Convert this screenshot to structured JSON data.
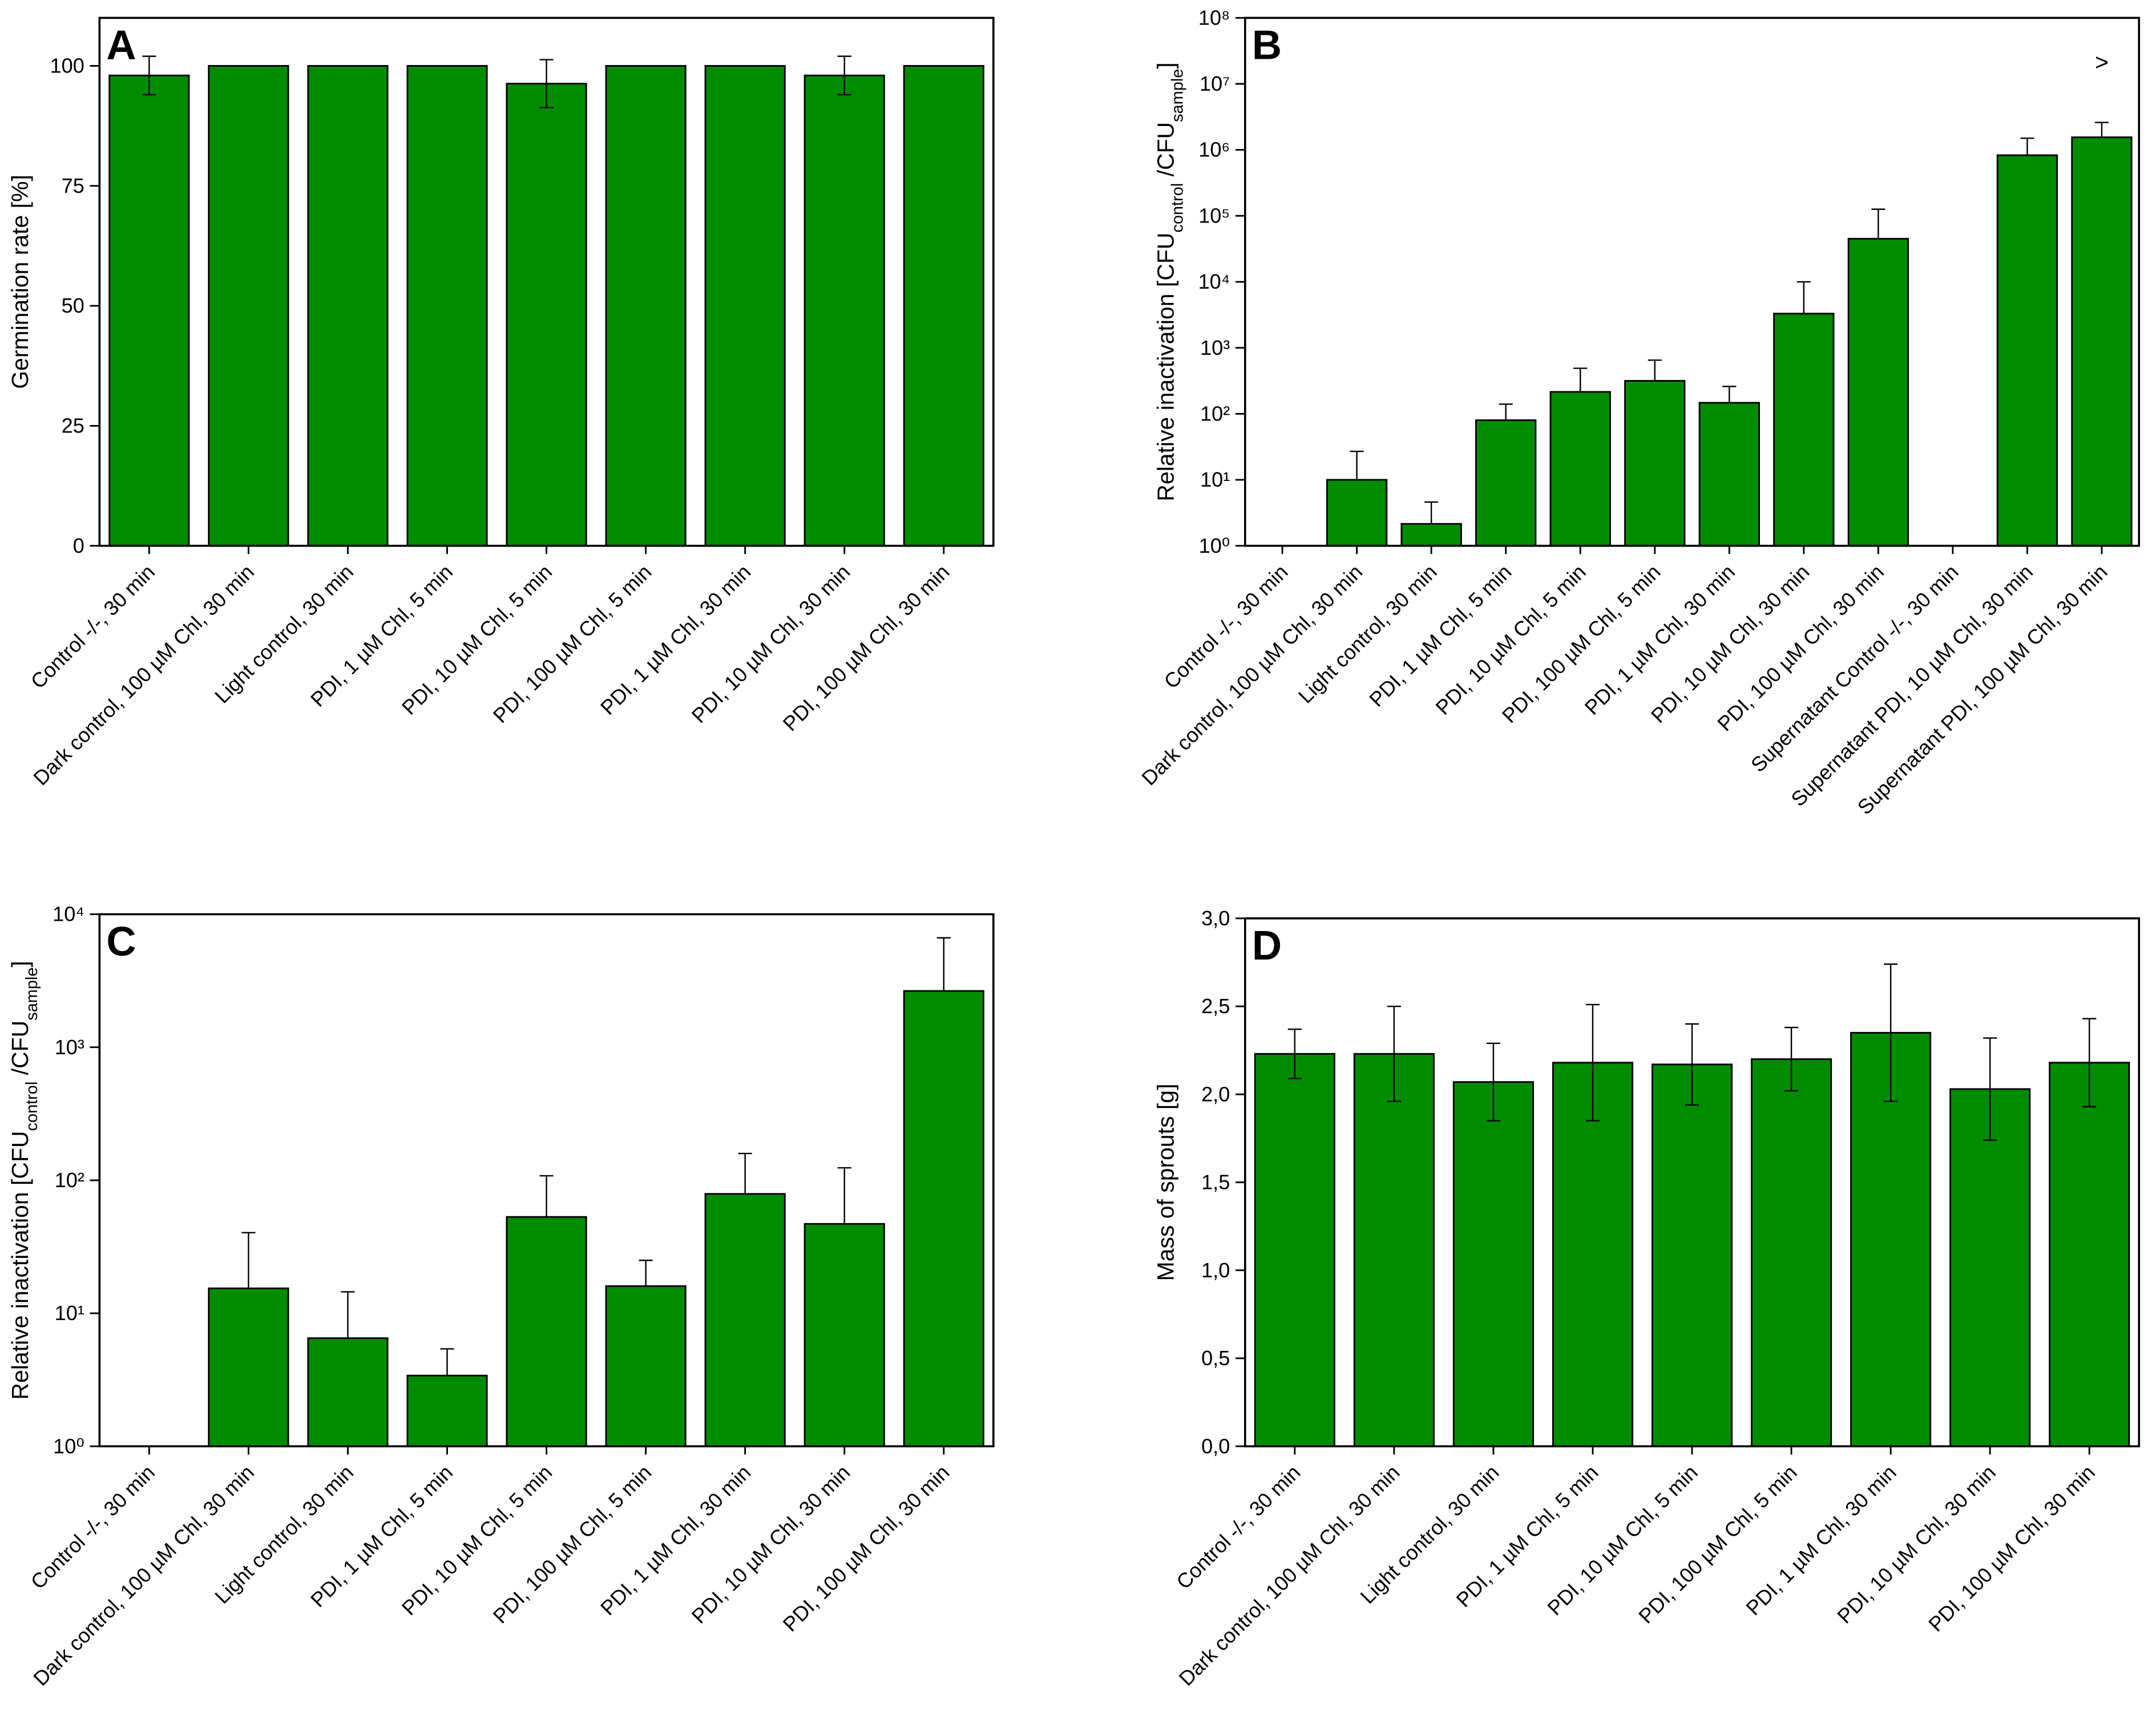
{
  "chart_data": [
    {
      "type": "bar",
      "panel_label": "A",
      "y_label": [
        "Germination rate [%]"
      ],
      "categories": [
        "Control -/-, 30 min",
        "Dark control, 100 µM Chl, 30 min",
        "Light control, 30 min",
        "PDI, 1 µM Chl, 5 min",
        "PDI, 10 µM Chl, 5 min",
        "PDI, 100 µM Chl, 5 min",
        "PDI, 1 µM Chl, 30 min",
        "PDI, 10 µM Chl, 30 min",
        "PDI, 100 µM Chl, 30 min"
      ],
      "values": [
        98,
        100,
        100,
        100,
        96.3,
        100,
        100,
        98,
        100
      ],
      "errors": [
        4,
        null,
        null,
        null,
        5,
        null,
        null,
        4,
        null
      ],
      "error_bars": "both",
      "log_y": false,
      "color": "#008c00",
      "ylim": [
        0,
        110
      ],
      "yticks": [
        0,
        25,
        50,
        75,
        100
      ]
    },
    {
      "type": "bar",
      "panel_label": "B",
      "y_label": [
        "Relative inactivation [CFU",
        "control",
        " /CFU",
        "sample",
        "]"
      ],
      "categories": [
        "Control -/-, 30 min",
        "Dark control, 100 µM Chl, 30 min",
        "Light control, 30 min",
        "PDI, 1 µM Chl, 5 min",
        "PDI, 10 µM Chl, 5 min",
        "PDI, 100 µM Chl, 5 min",
        "PDI, 1 µM Chl, 30 min",
        "PDI, 10 µM Chl, 30 min",
        "PDI, 100 µM Chl, 30 min",
        "Supernatant Control -/-, 30 min",
        "Supernatant PDI, 10 µM Chl, 30 min",
        "Supernatant PDI, 100 µM Chl, 30 min"
      ],
      "values": [
        1,
        10,
        2.15,
        80,
        215,
        316,
        147,
        3300,
        45000,
        1,
        830000,
        1550000
      ],
      "errors": [
        null,
        17,
        2.45,
        60,
        275,
        334,
        113,
        6700,
        81000,
        null,
        670000,
        1050000
      ],
      "error_bars": "upper",
      "log_y": true,
      "color": "#008c00",
      "annotations": [
        ">"
      ],
      "ylim": [
        1,
        100000000
      ],
      "yticks": [
        {
          "value": 1,
          "label": "10⁰"
        },
        {
          "value": 10,
          "label": "10¹"
        },
        {
          "value": 100,
          "label": "10²"
        },
        {
          "value": 1000,
          "label": "10³"
        },
        {
          "value": 10000,
          "label": "10⁴"
        },
        {
          "value": 100000,
          "label": "10⁵"
        },
        {
          "value": 1000000,
          "label": "10⁶"
        },
        {
          "value": 10000000,
          "label": "10⁷"
        },
        {
          "value": 100000000,
          "label": "10⁸"
        }
      ]
    },
    {
      "type": "bar",
      "panel_label": "C",
      "y_label": [
        "Relative inactivation [CFU",
        "control",
        " /CFU",
        "sample",
        "]"
      ],
      "categories": [
        "Control -/-, 30 min",
        "Dark control, 100 µM Chl, 30 min",
        "Light control, 30 min",
        "PDI, 1 µM Chl, 5 min",
        "PDI, 10 µM Chl, 5 min",
        "PDI, 100 µM Chl, 5 min",
        "PDI, 1 µM Chl, 30 min",
        "PDI, 10 µM Chl, 30 min",
        "PDI, 100 µM Chl, 30 min"
      ],
      "values": [
        1,
        15.4,
        6.5,
        3.4,
        53,
        16,
        79,
        47,
        2650
      ],
      "errors": [
        null,
        25,
        8,
        2,
        55,
        9,
        80,
        77,
        4000
      ],
      "error_bars": "upper",
      "log_y": true,
      "color": "#008c00",
      "ylim": [
        1,
        10000
      ],
      "yticks": [
        {
          "value": 1,
          "label": "10⁰"
        },
        {
          "value": 10,
          "label": "10¹"
        },
        {
          "value": 100,
          "label": "10²"
        },
        {
          "value": 1000,
          "label": "10³"
        },
        {
          "value": 10000,
          "label": "10⁴"
        }
      ]
    },
    {
      "type": "bar",
      "panel_label": "D",
      "y_label": [
        "Mass of sprouts [g]"
      ],
      "categories": [
        "Control -/-, 30 min",
        "Dark control, 100 µM Chl, 30 min",
        "Light control, 30 min",
        "PDI, 1 µM Chl, 5 min",
        "PDI, 10 µM Chl, 5 min",
        "PDI, 100 µM Chl, 5 min",
        "PDI, 1 µM Chl, 30 min",
        "PDI, 10 µM Chl, 30 min",
        "PDI, 100 µM Chl, 30 min"
      ],
      "values": [
        2.23,
        2.23,
        2.07,
        2.18,
        2.17,
        2.2,
        2.35,
        2.03,
        2.18
      ],
      "errors": [
        0.14,
        0.27,
        0.22,
        0.33,
        0.23,
        0.18,
        0.39,
        0.29,
        0.25
      ],
      "error_bars": "both",
      "log_y": false,
      "color": "#008c00",
      "ylim": [
        0,
        3
      ],
      "yticks": [
        {
          "value": 0,
          "label": "0,0"
        },
        {
          "value": 0.5,
          "label": "0,5"
        },
        {
          "value": 1,
          "label": "1,0"
        },
        {
          "value": 1.5,
          "label": "1,5"
        },
        {
          "value": 2,
          "label": "2,0"
        },
        {
          "value": 2.5,
          "label": "2,5"
        },
        {
          "value": 3,
          "label": "3,0"
        }
      ]
    }
  ]
}
